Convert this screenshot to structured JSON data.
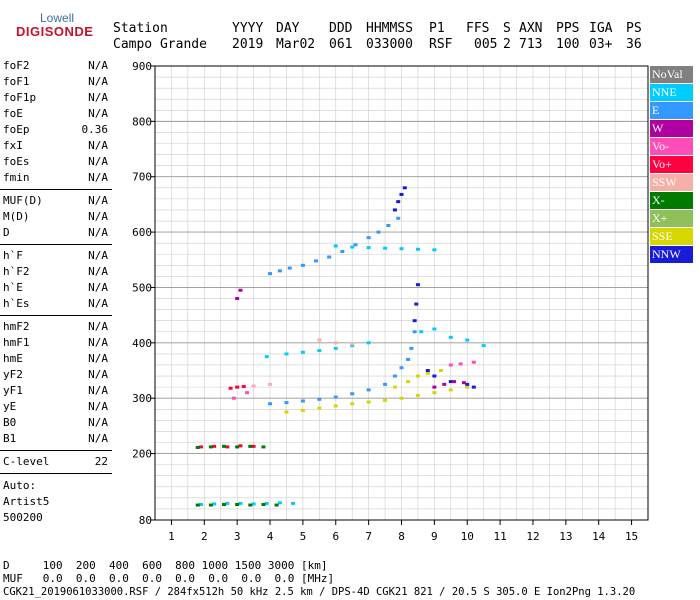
{
  "logo": {
    "line1": "Lowell",
    "line2": "DIGISONDE"
  },
  "header": {
    "labels": [
      "Station",
      "YYYY",
      "DAY",
      "DDD",
      "HHMMSS",
      "P1",
      "FFS",
      "S",
      "AXN",
      "PPS",
      "IGA",
      "PS"
    ],
    "values": [
      "Campo Grande",
      "2019",
      "Mar02",
      "061",
      "033000",
      "RSF",
      "005",
      "2",
      "713",
      "100",
      "03+",
      "36"
    ]
  },
  "params": {
    "group1": [
      {
        "k": "foF2",
        "v": "N/A"
      },
      {
        "k": "foF1",
        "v": "N/A"
      },
      {
        "k": "foF1p",
        "v": "N/A"
      },
      {
        "k": "foE",
        "v": "N/A"
      },
      {
        "k": "foEp",
        "v": "0.36"
      },
      {
        "k": "fxI",
        "v": "N/A"
      },
      {
        "k": "foEs",
        "v": "N/A"
      },
      {
        "k": "fmin",
        "v": "N/A"
      }
    ],
    "group2": [
      {
        "k": "MUF(D)",
        "v": "N/A"
      },
      {
        "k": "M(D)",
        "v": "N/A"
      },
      {
        "k": "D",
        "v": "N/A"
      }
    ],
    "group3": [
      {
        "k": "h`F",
        "v": "N/A"
      },
      {
        "k": "h`F2",
        "v": "N/A"
      },
      {
        "k": "h`E",
        "v": "N/A"
      },
      {
        "k": "h`Es",
        "v": "N/A"
      }
    ],
    "group4": [
      {
        "k": "hmF2",
        "v": "N/A"
      },
      {
        "k": "hmF1",
        "v": "N/A"
      },
      {
        "k": "hmE",
        "v": "N/A"
      },
      {
        "k": "yF2",
        "v": "N/A"
      },
      {
        "k": "yF1",
        "v": "N/A"
      },
      {
        "k": "yE",
        "v": "N/A"
      },
      {
        "k": "B0",
        "v": "N/A"
      },
      {
        "k": "B1",
        "v": "N/A"
      }
    ],
    "clevel": {
      "k": "C-level",
      "v": "22"
    },
    "auto": [
      "Auto:",
      "Artist5",
      "500200"
    ]
  },
  "legend": [
    {
      "label": "NoVal",
      "color": "#808080"
    },
    {
      "label": "NNE",
      "color": "#00ccff"
    },
    {
      "label": "E",
      "color": "#3399ff"
    },
    {
      "label": "W",
      "color": "#b0009f"
    },
    {
      "label": "Vo-",
      "color": "#ff4db8"
    },
    {
      "label": "Vo+",
      "color": "#ff0040"
    },
    {
      "label": "SSW",
      "color": "#f4b0a8"
    },
    {
      "label": "X-",
      "color": "#007a00"
    },
    {
      "label": "X+",
      "color": "#8fbf5a"
    },
    {
      "label": "SSE",
      "color": "#d6d600"
    },
    {
      "label": "NNW",
      "color": "#1a1ad9"
    }
  ],
  "footer": {
    "d_row": "D     100  200  400  600  800 1000 1500 3000 [km]",
    "muf_row": "MUF   0.0  0.0  0.0  0.0  0.0  0.0  0.0  0.0 [MHz]",
    "info": "CGK21_2019061033000.RSF / 284fx512h 50 kHz 2.5 km / DPS-4D CGK21 821 / 20.5 S 305.0 E Ion2Png 1.3.20"
  },
  "chart_data": {
    "type": "scatter",
    "xlabel": "",
    "ylabel": "",
    "xlim": [
      0.5,
      15.5
    ],
    "ylim": [
      80,
      900
    ],
    "xticks": [
      1,
      2,
      3,
      4,
      5,
      6,
      7,
      8,
      9,
      10,
      11,
      12,
      13,
      14,
      15
    ],
    "yticks": [
      80,
      200,
      300,
      400,
      500,
      600,
      700,
      800,
      900
    ],
    "grid": true,
    "traces": [
      {
        "name": "E",
        "color": "#3399ff",
        "points": [
          [
            4.0,
            525
          ],
          [
            4.3,
            530
          ],
          [
            4.6,
            535
          ],
          [
            5.0,
            540
          ],
          [
            5.4,
            548
          ],
          [
            5.8,
            555
          ],
          [
            6.2,
            565
          ],
          [
            6.6,
            577
          ],
          [
            7.0,
            590
          ],
          [
            7.3,
            600
          ],
          [
            7.6,
            612
          ],
          [
            7.9,
            625
          ]
        ]
      },
      {
        "name": "NNW",
        "color": "#1a1ad9",
        "points": [
          [
            7.8,
            640
          ],
          [
            7.9,
            655
          ],
          [
            8.0,
            668
          ],
          [
            8.1,
            680
          ]
        ]
      },
      {
        "name": "NNE",
        "color": "#00ccff",
        "points": [
          [
            6.0,
            575
          ],
          [
            6.5,
            573
          ],
          [
            7.0,
            572
          ],
          [
            7.5,
            571
          ],
          [
            8.0,
            570
          ],
          [
            8.5,
            569
          ],
          [
            9.0,
            568
          ]
        ]
      },
      {
        "name": "SSE",
        "color": "#d6d600",
        "points": [
          [
            4.5,
            275
          ],
          [
            5.0,
            278
          ],
          [
            5.5,
            282
          ],
          [
            6.0,
            286
          ],
          [
            6.5,
            290
          ],
          [
            7.0,
            293
          ],
          [
            7.5,
            296
          ],
          [
            8.0,
            300
          ],
          [
            8.5,
            305
          ],
          [
            9.0,
            310
          ],
          [
            9.5,
            315
          ],
          [
            10.0,
            320
          ],
          [
            7.8,
            320
          ],
          [
            8.2,
            330
          ],
          [
            8.5,
            340
          ],
          [
            8.8,
            345
          ],
          [
            9.2,
            350
          ]
        ]
      },
      {
        "name": "E",
        "color": "#3399ff",
        "points": [
          [
            4.0,
            290
          ],
          [
            4.5,
            292
          ],
          [
            5.0,
            295
          ],
          [
            5.5,
            298
          ],
          [
            6.0,
            302
          ],
          [
            6.5,
            308
          ],
          [
            7.0,
            315
          ],
          [
            7.5,
            325
          ],
          [
            7.8,
            340
          ],
          [
            8.0,
            355
          ],
          [
            8.2,
            370
          ],
          [
            8.3,
            390
          ],
          [
            8.4,
            420
          ]
        ]
      },
      {
        "name": "NNW",
        "color": "#1a1ad9",
        "points": [
          [
            8.4,
            440
          ],
          [
            8.45,
            470
          ],
          [
            8.5,
            505
          ],
          [
            9.5,
            330
          ],
          [
            10.0,
            325
          ],
          [
            10.2,
            320
          ],
          [
            8.8,
            350
          ],
          [
            9.0,
            340
          ]
        ]
      },
      {
        "name": "NNE",
        "color": "#00ccff",
        "points": [
          [
            3.9,
            375
          ],
          [
            4.5,
            380
          ],
          [
            5.0,
            383
          ],
          [
            5.5,
            386
          ],
          [
            6.0,
            390
          ],
          [
            6.5,
            395
          ],
          [
            7.0,
            400
          ],
          [
            8.6,
            420
          ],
          [
            9.0,
            425
          ],
          [
            9.5,
            410
          ],
          [
            10.0,
            405
          ],
          [
            10.5,
            395
          ]
        ]
      },
      {
        "name": "SSW",
        "color": "#f4b0a8",
        "points": [
          [
            5.5,
            405
          ],
          [
            6.0,
            400
          ],
          [
            6.5,
            398
          ],
          [
            3.0,
            320
          ],
          [
            3.5,
            322
          ],
          [
            4.0,
            325
          ]
        ]
      },
      {
        "name": "Vo+",
        "color": "#ff0040",
        "points": [
          [
            1.9,
            212
          ],
          [
            2.3,
            213
          ],
          [
            2.7,
            212
          ],
          [
            3.1,
            214
          ],
          [
            3.5,
            213
          ],
          [
            2.8,
            318
          ],
          [
            3.0,
            320
          ],
          [
            3.2,
            321
          ]
        ]
      },
      {
        "name": "X-",
        "color": "#007a00",
        "points": [
          [
            1.8,
            211
          ],
          [
            2.2,
            212
          ],
          [
            2.6,
            213
          ],
          [
            3.0,
            212
          ],
          [
            3.4,
            213
          ],
          [
            3.8,
            212
          ]
        ]
      },
      {
        "name": "NNE",
        "color": "#00ccff",
        "points": [
          [
            1.9,
            108
          ],
          [
            2.3,
            109
          ],
          [
            2.7,
            110
          ],
          [
            3.1,
            110
          ],
          [
            3.5,
            109
          ],
          [
            3.9,
            110
          ],
          [
            4.3,
            111
          ],
          [
            4.7,
            110
          ]
        ]
      },
      {
        "name": "X-",
        "color": "#007a00",
        "points": [
          [
            1.8,
            107
          ],
          [
            2.2,
            107
          ],
          [
            2.6,
            108
          ],
          [
            3.0,
            108
          ],
          [
            3.4,
            107
          ],
          [
            3.8,
            108
          ],
          [
            4.2,
            107
          ]
        ]
      },
      {
        "name": "W",
        "color": "#b0009f",
        "points": [
          [
            9.0,
            320
          ],
          [
            9.3,
            325
          ],
          [
            9.6,
            330
          ],
          [
            9.9,
            328
          ],
          [
            3.0,
            480
          ],
          [
            3.1,
            495
          ]
        ]
      },
      {
        "name": "Vo-",
        "color": "#ff4db8",
        "points": [
          [
            9.5,
            360
          ],
          [
            9.8,
            362
          ],
          [
            10.2,
            365
          ],
          [
            2.9,
            300
          ],
          [
            3.3,
            310
          ]
        ]
      }
    ]
  }
}
